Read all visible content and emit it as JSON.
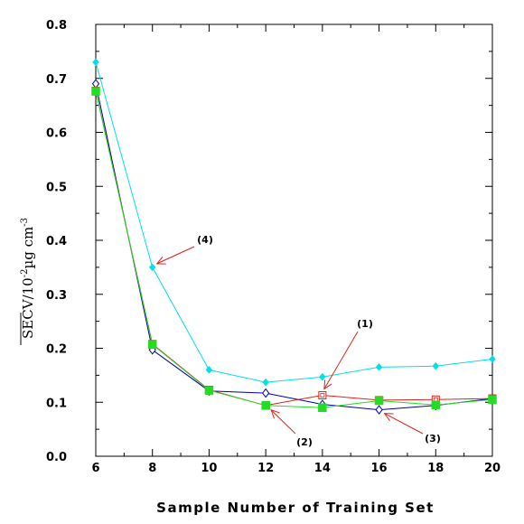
{
  "chart_data": {
    "type": "line",
    "xlabel": "Sample Number of Training Set",
    "ylabel": {
      "main": "SECV/10",
      "exp1": "-2",
      "unit": "µg cm",
      "exp2": "-3"
    },
    "xlim": [
      6,
      20
    ],
    "ylim": [
      0.0,
      0.8
    ],
    "x_ticks": [
      "6",
      "8",
      "10",
      "12",
      "14",
      "16",
      "18",
      "20"
    ],
    "y_ticks": [
      "0.0",
      "0.1",
      "0.2",
      "0.3",
      "0.4",
      "0.5",
      "0.6",
      "0.7",
      "0.8"
    ],
    "x": [
      6,
      8,
      10,
      12,
      14,
      16,
      18,
      20
    ],
    "series": [
      {
        "label": "(1)",
        "color": "#e02020",
        "marker": "open-square",
        "values": [
          0.677,
          0.208,
          0.123,
          0.094,
          0.113,
          0.104,
          0.105,
          0.107
        ]
      },
      {
        "label": "(2)",
        "color": "#22dd22",
        "marker": "filled-square",
        "values": [
          0.676,
          0.207,
          0.122,
          0.094,
          0.09,
          0.103,
          0.095,
          0.105
        ]
      },
      {
        "label": "(3)",
        "color": "#0000aa",
        "marker": "open-diamond",
        "values": [
          0.69,
          0.197,
          0.121,
          0.117,
          0.096,
          0.086,
          0.094,
          0.107
        ]
      },
      {
        "label": "(4)",
        "color": "#00e0e8",
        "marker": "filled-diamond",
        "values": [
          0.73,
          0.35,
          0.16,
          0.137,
          0.147,
          0.165,
          0.167,
          0.18
        ]
      }
    ],
    "annotations": [
      {
        "text": "(4)",
        "target": [
          8,
          0.35
        ],
        "arrow_color": "#e02020"
      },
      {
        "text": "(1)",
        "target": [
          14,
          0.113
        ],
        "arrow_color": "#e02020"
      },
      {
        "text": "(2)",
        "target": [
          12,
          0.094
        ],
        "arrow_color": "#e02020"
      },
      {
        "text": "(3)",
        "target": [
          16,
          0.086
        ],
        "arrow_color": "#e02020"
      }
    ],
    "grid": false
  }
}
